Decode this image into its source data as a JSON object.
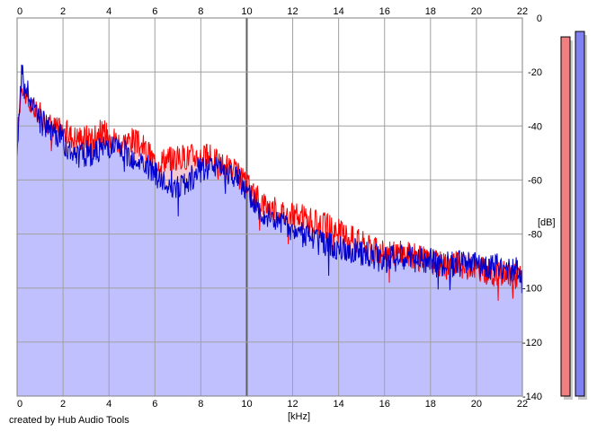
{
  "chart_data": {
    "type": "area",
    "x_unit": "[kHz]",
    "y_unit": "[dB]",
    "xlim": [
      0,
      22
    ],
    "ylim": [
      -140,
      0
    ],
    "x_ticks": [
      0,
      2,
      4,
      6,
      8,
      10,
      12,
      14,
      16,
      18,
      20,
      22
    ],
    "y_ticks": [
      0,
      -20,
      -40,
      -60,
      -80,
      -100,
      -120,
      -140
    ],
    "grid": true,
    "series": [
      {
        "color": "#ff0000",
        "x": [
          0,
          0.2,
          0.5,
          1,
          1.5,
          2,
          2.5,
          3,
          3.5,
          4,
          4.5,
          5,
          5.5,
          6,
          6.5,
          7,
          7.5,
          8,
          8.5,
          9,
          9.5,
          10,
          10.5,
          11,
          11.5,
          12,
          12.5,
          13,
          13.5,
          14,
          14.5,
          15,
          15.5,
          16,
          16.5,
          17,
          17.5,
          18,
          18.5,
          19,
          19.5,
          20,
          20.5,
          21,
          21.5,
          22
        ],
        "values": [
          -45,
          -24,
          -32,
          -36,
          -40,
          -42,
          -44,
          -44,
          -42,
          -43,
          -46,
          -45,
          -48,
          -53,
          -52,
          -52,
          -51,
          -51,
          -52,
          -55,
          -57,
          -62,
          -67,
          -70,
          -72,
          -73,
          -74,
          -76,
          -77,
          -79,
          -81,
          -83,
          -86,
          -87,
          -87,
          -87,
          -89,
          -90,
          -91,
          -91,
          -92,
          -92,
          -94,
          -95,
          -95,
          -96
        ]
      },
      {
        "color": "#0000cc",
        "x": [
          0,
          0.2,
          0.5,
          1,
          1.5,
          2,
          2.5,
          3,
          3.5,
          4,
          4.5,
          5,
          5.5,
          6,
          6.5,
          7,
          7.5,
          8,
          8.5,
          9,
          9.5,
          10,
          10.5,
          11,
          11.5,
          12,
          12.5,
          13,
          13.5,
          14,
          14.5,
          15,
          15.5,
          16,
          16.5,
          17,
          17.5,
          18,
          18.5,
          19,
          19.5,
          20,
          20.5,
          21,
          21.5,
          22
        ],
        "values": [
          -50,
          -20,
          -28,
          -38,
          -42,
          -45,
          -52,
          -50,
          -50,
          -47,
          -49,
          -51,
          -54,
          -58,
          -61,
          -62,
          -60,
          -56,
          -54,
          -56,
          -58,
          -64,
          -70,
          -73,
          -76,
          -79,
          -81,
          -83,
          -84,
          -85,
          -86,
          -87,
          -88,
          -89,
          -89,
          -89,
          -89,
          -90,
          -91,
          -91,
          -91,
          -91,
          -92,
          -92,
          -93,
          -94
        ]
      }
    ],
    "level_meters": [
      {
        "color": "#f08080",
        "level_db": -7
      },
      {
        "color": "#8080f0",
        "level_db": -5
      }
    ],
    "fill_color": "#c0c0ff",
    "footer": "created by Hub Audio Tools"
  }
}
